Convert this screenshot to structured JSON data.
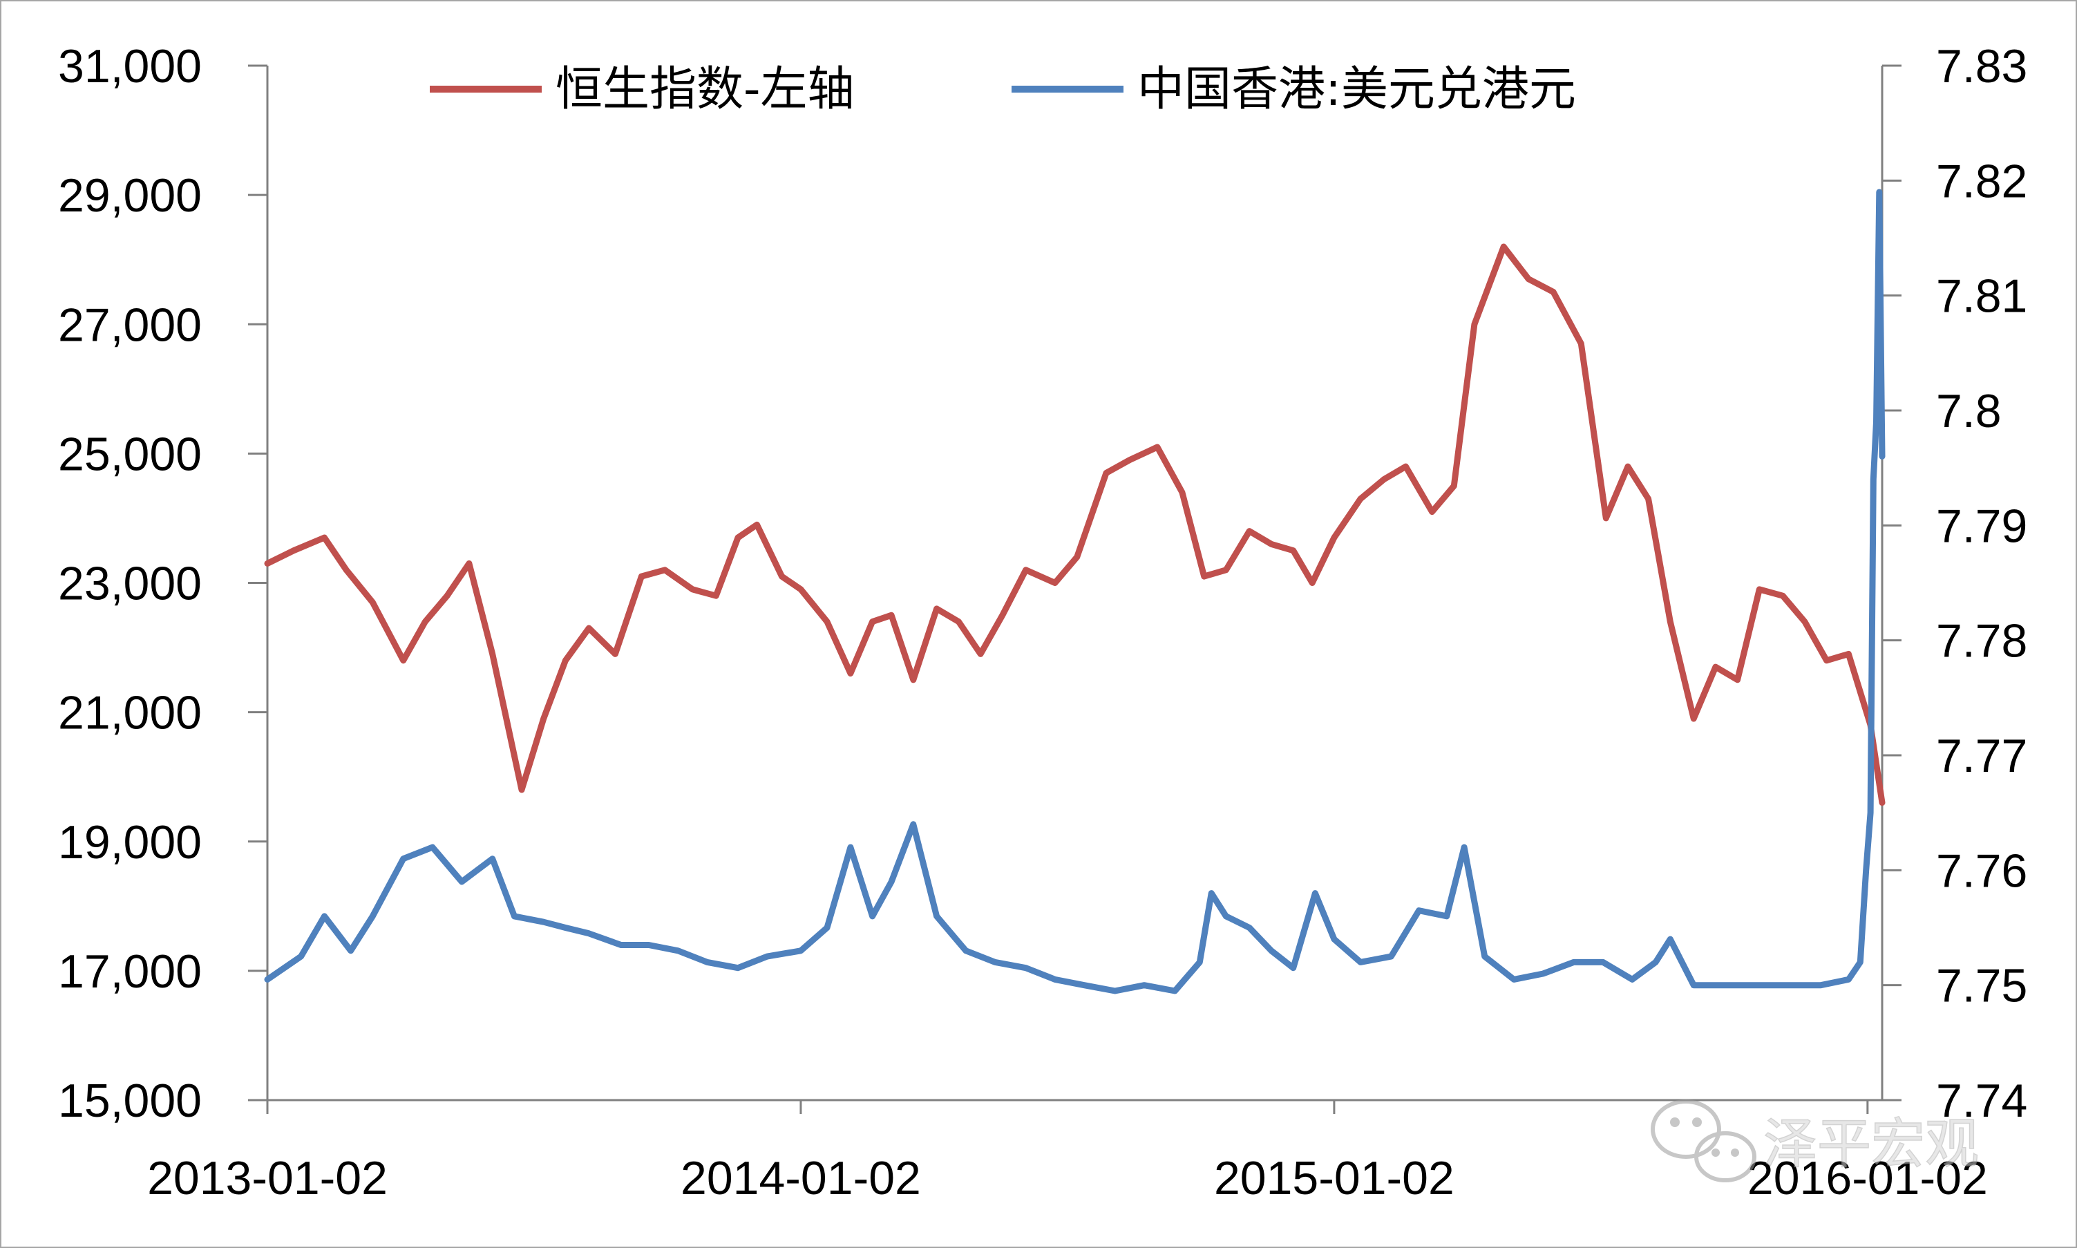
{
  "chart_data": {
    "type": "line",
    "title": "",
    "x_ticks": [
      "2013-01-02",
      "2014-01-02",
      "2015-01-02",
      "2016-01-02"
    ],
    "x_range": [
      "2013-01-02",
      "2016-01-12"
    ],
    "y_left": {
      "ticks": [
        "15,000",
        "17,000",
        "19,000",
        "21,000",
        "23,000",
        "25,000",
        "27,000",
        "29,000",
        "31,000"
      ],
      "range": [
        15000,
        31000
      ]
    },
    "y_right": {
      "ticks": [
        "7.74",
        "7.75",
        "7.76",
        "7.77",
        "7.78",
        "7.79",
        "7.8",
        "7.81",
        "7.82",
        "7.83"
      ],
      "range": [
        7.74,
        7.83
      ]
    },
    "grid": false,
    "legend_position": "top",
    "series": [
      {
        "name": "恒生指数-左轴",
        "axis": "left",
        "color": "#c0504d",
        "points": [
          [
            "2013-01-02",
            23300
          ],
          [
            "2013-01-20",
            23500
          ],
          [
            "2013-02-10",
            23700
          ],
          [
            "2013-02-25",
            23200
          ],
          [
            "2013-03-15",
            22700
          ],
          [
            "2013-04-05",
            21800
          ],
          [
            "2013-04-20",
            22400
          ],
          [
            "2013-05-05",
            22800
          ],
          [
            "2013-05-20",
            23300
          ],
          [
            "2013-06-05",
            21900
          ],
          [
            "2013-06-25",
            19800
          ],
          [
            "2013-07-10",
            20900
          ],
          [
            "2013-07-25",
            21800
          ],
          [
            "2013-08-10",
            22300
          ],
          [
            "2013-08-28",
            21900
          ],
          [
            "2013-09-15",
            23100
          ],
          [
            "2013-10-01",
            23200
          ],
          [
            "2013-10-20",
            22900
          ],
          [
            "2013-11-05",
            22800
          ],
          [
            "2013-11-20",
            23700
          ],
          [
            "2013-12-03",
            23900
          ],
          [
            "2013-12-20",
            23100
          ],
          [
            "2014-01-02",
            22900
          ],
          [
            "2014-01-20",
            22400
          ],
          [
            "2014-02-05",
            21600
          ],
          [
            "2014-02-20",
            22400
          ],
          [
            "2014-03-05",
            22500
          ],
          [
            "2014-03-20",
            21500
          ],
          [
            "2014-04-05",
            22600
          ],
          [
            "2014-04-20",
            22400
          ],
          [
            "2014-05-05",
            21900
          ],
          [
            "2014-05-20",
            22500
          ],
          [
            "2014-06-05",
            23200
          ],
          [
            "2014-06-25",
            23000
          ],
          [
            "2014-07-10",
            23400
          ],
          [
            "2014-07-30",
            24700
          ],
          [
            "2014-08-15",
            24900
          ],
          [
            "2014-09-03",
            25100
          ],
          [
            "2014-09-20",
            24400
          ],
          [
            "2014-10-05",
            23100
          ],
          [
            "2014-10-20",
            23200
          ],
          [
            "2014-11-05",
            23800
          ],
          [
            "2014-11-20",
            23600
          ],
          [
            "2014-12-05",
            23500
          ],
          [
            "2014-12-18",
            23000
          ],
          [
            "2015-01-02",
            23700
          ],
          [
            "2015-01-20",
            24300
          ],
          [
            "2015-02-05",
            24600
          ],
          [
            "2015-02-20",
            24800
          ],
          [
            "2015-03-10",
            24100
          ],
          [
            "2015-03-25",
            24500
          ],
          [
            "2015-04-08",
            27000
          ],
          [
            "2015-04-28",
            28200
          ],
          [
            "2015-05-15",
            27700
          ],
          [
            "2015-06-01",
            27500
          ],
          [
            "2015-06-20",
            26700
          ],
          [
            "2015-07-07",
            24000
          ],
          [
            "2015-07-22",
            24800
          ],
          [
            "2015-08-05",
            24300
          ],
          [
            "2015-08-20",
            22400
          ],
          [
            "2015-09-05",
            20900
          ],
          [
            "2015-09-20",
            21700
          ],
          [
            "2015-10-05",
            21500
          ],
          [
            "2015-10-20",
            22900
          ],
          [
            "2015-11-05",
            22800
          ],
          [
            "2015-11-20",
            22400
          ],
          [
            "2015-12-05",
            21800
          ],
          [
            "2015-12-20",
            21900
          ],
          [
            "2016-01-04",
            20800
          ],
          [
            "2016-01-12",
            19600
          ]
        ]
      },
      {
        "name": "中国香港:美元兑港元",
        "axis": "right",
        "color": "#4f81bd",
        "points": [
          [
            "2013-01-02",
            7.7505
          ],
          [
            "2013-01-25",
            7.7525
          ],
          [
            "2013-02-10",
            7.756
          ],
          [
            "2013-02-28",
            7.753
          ],
          [
            "2013-03-15",
            7.756
          ],
          [
            "2013-04-05",
            7.761
          ],
          [
            "2013-04-25",
            7.762
          ],
          [
            "2013-05-15",
            7.759
          ],
          [
            "2013-06-05",
            7.761
          ],
          [
            "2013-06-20",
            7.756
          ],
          [
            "2013-07-10",
            7.7555
          ],
          [
            "2013-07-25",
            7.755
          ],
          [
            "2013-08-10",
            7.7545
          ],
          [
            "2013-09-01",
            7.7535
          ],
          [
            "2013-09-20",
            7.7535
          ],
          [
            "2013-10-10",
            7.753
          ],
          [
            "2013-10-30",
            7.752
          ],
          [
            "2013-11-20",
            7.7515
          ],
          [
            "2013-12-10",
            7.7525
          ],
          [
            "2014-01-02",
            7.753
          ],
          [
            "2014-01-20",
            7.755
          ],
          [
            "2014-02-05",
            7.762
          ],
          [
            "2014-02-20",
            7.756
          ],
          [
            "2014-03-05",
            7.759
          ],
          [
            "2014-03-20",
            7.764
          ],
          [
            "2014-04-05",
            7.756
          ],
          [
            "2014-04-25",
            7.753
          ],
          [
            "2014-05-15",
            7.752
          ],
          [
            "2014-06-05",
            7.7515
          ],
          [
            "2014-06-25",
            7.7505
          ],
          [
            "2014-07-15",
            7.75
          ],
          [
            "2014-08-05",
            7.7495
          ],
          [
            "2014-08-25",
            7.75
          ],
          [
            "2014-09-15",
            7.7495
          ],
          [
            "2014-10-02",
            7.752
          ],
          [
            "2014-10-10",
            7.758
          ],
          [
            "2014-10-20",
            7.756
          ],
          [
            "2014-11-05",
            7.755
          ],
          [
            "2014-11-20",
            7.753
          ],
          [
            "2014-12-05",
            7.7515
          ],
          [
            "2014-12-20",
            7.758
          ],
          [
            "2015-01-02",
            7.754
          ],
          [
            "2015-01-20",
            7.752
          ],
          [
            "2015-02-10",
            7.7525
          ],
          [
            "2015-03-01",
            7.7565
          ],
          [
            "2015-03-20",
            7.756
          ],
          [
            "2015-04-01",
            7.762
          ],
          [
            "2015-04-15",
            7.7525
          ],
          [
            "2015-05-05",
            7.7505
          ],
          [
            "2015-05-25",
            7.751
          ],
          [
            "2015-06-15",
            7.752
          ],
          [
            "2015-07-05",
            7.752
          ],
          [
            "2015-07-25",
            7.7505
          ],
          [
            "2015-08-10",
            7.752
          ],
          [
            "2015-08-20",
            7.754
          ],
          [
            "2015-09-05",
            7.75
          ],
          [
            "2015-10-01",
            7.75
          ],
          [
            "2015-11-01",
            7.75
          ],
          [
            "2015-12-01",
            7.75
          ],
          [
            "2015-12-20",
            7.7505
          ],
          [
            "2015-12-28",
            7.752
          ],
          [
            "2016-01-01",
            7.76
          ],
          [
            "2016-01-04",
            7.765
          ],
          [
            "2016-01-06",
            7.794
          ],
          [
            "2016-01-08",
            7.799
          ],
          [
            "2016-01-10",
            7.819
          ],
          [
            "2016-01-12",
            7.796
          ]
        ]
      }
    ]
  }
}
